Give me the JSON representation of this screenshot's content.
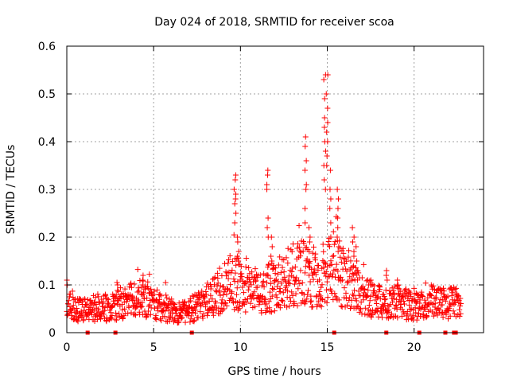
{
  "colors": {
    "series": "#ff0000",
    "axis": "#000000",
    "grid": "#a0a0a0"
  },
  "chart_data": {
    "type": "scatter",
    "title": "Day 024 of 2018, SRMTID for receiver scoa",
    "xlabel": "GPS time / hours",
    "ylabel": "SRMTID / TECUs",
    "xlim": [
      0,
      24
    ],
    "ylim": [
      0,
      0.6
    ],
    "xticks": [
      0,
      5,
      10,
      15,
      20
    ],
    "xtick_labels": [
      "0",
      "5",
      "10",
      "15",
      "20"
    ],
    "yticks": [
      0,
      0.1,
      0.2,
      0.3,
      0.4,
      0.5,
      0.6
    ],
    "ytick_labels": [
      "0",
      "0.1",
      "0.2",
      "0.3",
      "0.4",
      "0.5",
      "0.6"
    ],
    "grid": true,
    "marker": "+",
    "series_name": "SRMTID",
    "profile": [
      [
        0.0,
        0.07
      ],
      [
        0.5,
        0.05
      ],
      [
        1.0,
        0.045
      ],
      [
        1.5,
        0.05
      ],
      [
        2.0,
        0.055
      ],
      [
        2.5,
        0.05
      ],
      [
        3.0,
        0.06
      ],
      [
        3.5,
        0.065
      ],
      [
        4.0,
        0.07
      ],
      [
        4.5,
        0.065
      ],
      [
        5.0,
        0.06
      ],
      [
        5.5,
        0.055
      ],
      [
        6.0,
        0.045
      ],
      [
        6.5,
        0.04
      ],
      [
        7.0,
        0.045
      ],
      [
        7.5,
        0.055
      ],
      [
        8.0,
        0.065
      ],
      [
        8.5,
        0.075
      ],
      [
        9.0,
        0.09
      ],
      [
        9.5,
        0.11
      ],
      [
        10.0,
        0.1
      ],
      [
        10.5,
        0.09
      ],
      [
        11.0,
        0.085
      ],
      [
        11.5,
        0.09
      ],
      [
        12.0,
        0.1
      ],
      [
        12.5,
        0.11
      ],
      [
        13.0,
        0.12
      ],
      [
        13.5,
        0.13
      ],
      [
        14.0,
        0.12
      ],
      [
        14.5,
        0.11
      ],
      [
        15.0,
        0.13
      ],
      [
        15.5,
        0.14
      ],
      [
        16.0,
        0.11
      ],
      [
        16.5,
        0.1
      ],
      [
        17.0,
        0.08
      ],
      [
        17.5,
        0.07
      ],
      [
        18.0,
        0.065
      ],
      [
        18.5,
        0.06
      ],
      [
        19.0,
        0.065
      ],
      [
        19.5,
        0.06
      ],
      [
        20.0,
        0.055
      ],
      [
        20.5,
        0.06
      ],
      [
        21.0,
        0.065
      ],
      [
        21.5,
        0.06
      ],
      [
        22.0,
        0.06
      ],
      [
        22.5,
        0.065
      ]
    ],
    "peaks": [
      {
        "x": 9.68,
        "ys": [
          0.33,
          0.32,
          0.3,
          0.29,
          0.28,
          0.27,
          0.25,
          0.23
        ]
      },
      {
        "x": 9.85,
        "ys": [
          0.2,
          0.19,
          0.17,
          0.16,
          0.15
        ]
      },
      {
        "x": 11.55,
        "ys": [
          0.34,
          0.33,
          0.31,
          0.3,
          0.24,
          0.22,
          0.2
        ]
      },
      {
        "x": 11.8,
        "ys": [
          0.2,
          0.18,
          0.16,
          0.15
        ]
      },
      {
        "x": 13.75,
        "ys": [
          0.41,
          0.39,
          0.36,
          0.34,
          0.31,
          0.3,
          0.26,
          0.23
        ]
      },
      {
        "x": 13.95,
        "ys": [
          0.22,
          0.2,
          0.19,
          0.17
        ]
      },
      {
        "x": 14.85,
        "ys": [
          0.54,
          0.53,
          0.49,
          0.45,
          0.43,
          0.4,
          0.38,
          0.35,
          0.32,
          0.3
        ]
      },
      {
        "x": 15.0,
        "ys": [
          0.54,
          0.5,
          0.47,
          0.44,
          0.42,
          0.4,
          0.37,
          0.35
        ]
      },
      {
        "x": 15.2,
        "ys": [
          0.34,
          0.3,
          0.28,
          0.26,
          0.23,
          0.2
        ]
      },
      {
        "x": 15.6,
        "ys": [
          0.3,
          0.28,
          0.26,
          0.24,
          0.22,
          0.2,
          0.18
        ]
      },
      {
        "x": 16.5,
        "ys": [
          0.22,
          0.2,
          0.19,
          0.17,
          0.16,
          0.14
        ]
      },
      {
        "x": 16.7,
        "ys": [
          0.18,
          0.15,
          0.13
        ]
      },
      {
        "x": 17.5,
        "ys": [
          0.11,
          0.1
        ]
      },
      {
        "x": 18.4,
        "ys": [
          0.13,
          0.12,
          0.11
        ]
      },
      {
        "x": 19.1,
        "ys": [
          0.11,
          0.1
        ]
      },
      {
        "x": 4.4,
        "ys": [
          0.12,
          0.11,
          0.1
        ]
      },
      {
        "x": 2.9,
        "ys": [
          0.105,
          0.1
        ]
      },
      {
        "x": 0.05,
        "ys": [
          0.11,
          0.1
        ]
      }
    ],
    "gap_markers_x": [
      1.2,
      2.8,
      7.2,
      15.4,
      18.4,
      20.3,
      21.8,
      22.3,
      22.4
    ]
  }
}
